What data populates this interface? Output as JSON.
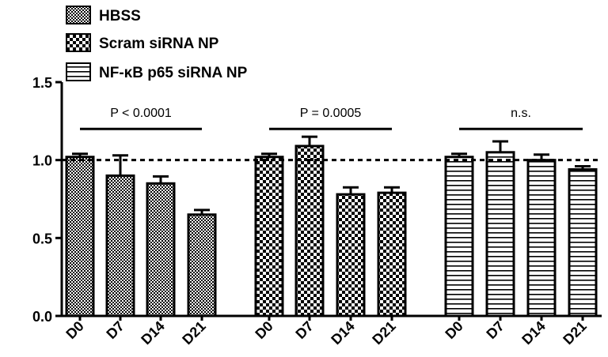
{
  "chart_data": {
    "type": "bar",
    "title": "",
    "xlabel": "",
    "ylabel": "",
    "ylim": [
      0,
      1.5
    ],
    "yticks": [
      "0.0",
      "0.5",
      "1.0",
      "1.5"
    ],
    "reference_line": 1.0,
    "legend": {
      "placement": "top-left",
      "entries": [
        "HBSS",
        "Scram siRNA NP",
        "NF-κB p65 siRNA NP"
      ]
    },
    "categories": [
      "D0",
      "D7",
      "D14",
      "D21"
    ],
    "series": [
      {
        "name": "HBSS",
        "pattern": "small-check",
        "values": [
          1.02,
          0.9,
          0.85,
          0.65
        ],
        "errors": [
          0.02,
          0.13,
          0.045,
          0.03
        ]
      },
      {
        "name": "Scram siRNA NP",
        "pattern": "large-check",
        "values": [
          1.02,
          1.09,
          0.78,
          0.79
        ],
        "errors": [
          0.02,
          0.06,
          0.045,
          0.035
        ]
      },
      {
        "name": "NF-κB p65 siRNA NP",
        "pattern": "horizontal-stripes",
        "values": [
          1.02,
          1.05,
          1.0,
          0.94
        ],
        "errors": [
          0.02,
          0.07,
          0.035,
          0.02
        ]
      }
    ],
    "annotations": [
      {
        "group": 0,
        "text": "P < 0.0001",
        "y": 1.2
      },
      {
        "group": 1,
        "text": "P = 0.0005",
        "y": 1.2
      },
      {
        "group": 2,
        "text": "n.s.",
        "y": 1.2
      }
    ],
    "colors": {
      "ink": "#000000",
      "background": "#ffffff"
    }
  }
}
